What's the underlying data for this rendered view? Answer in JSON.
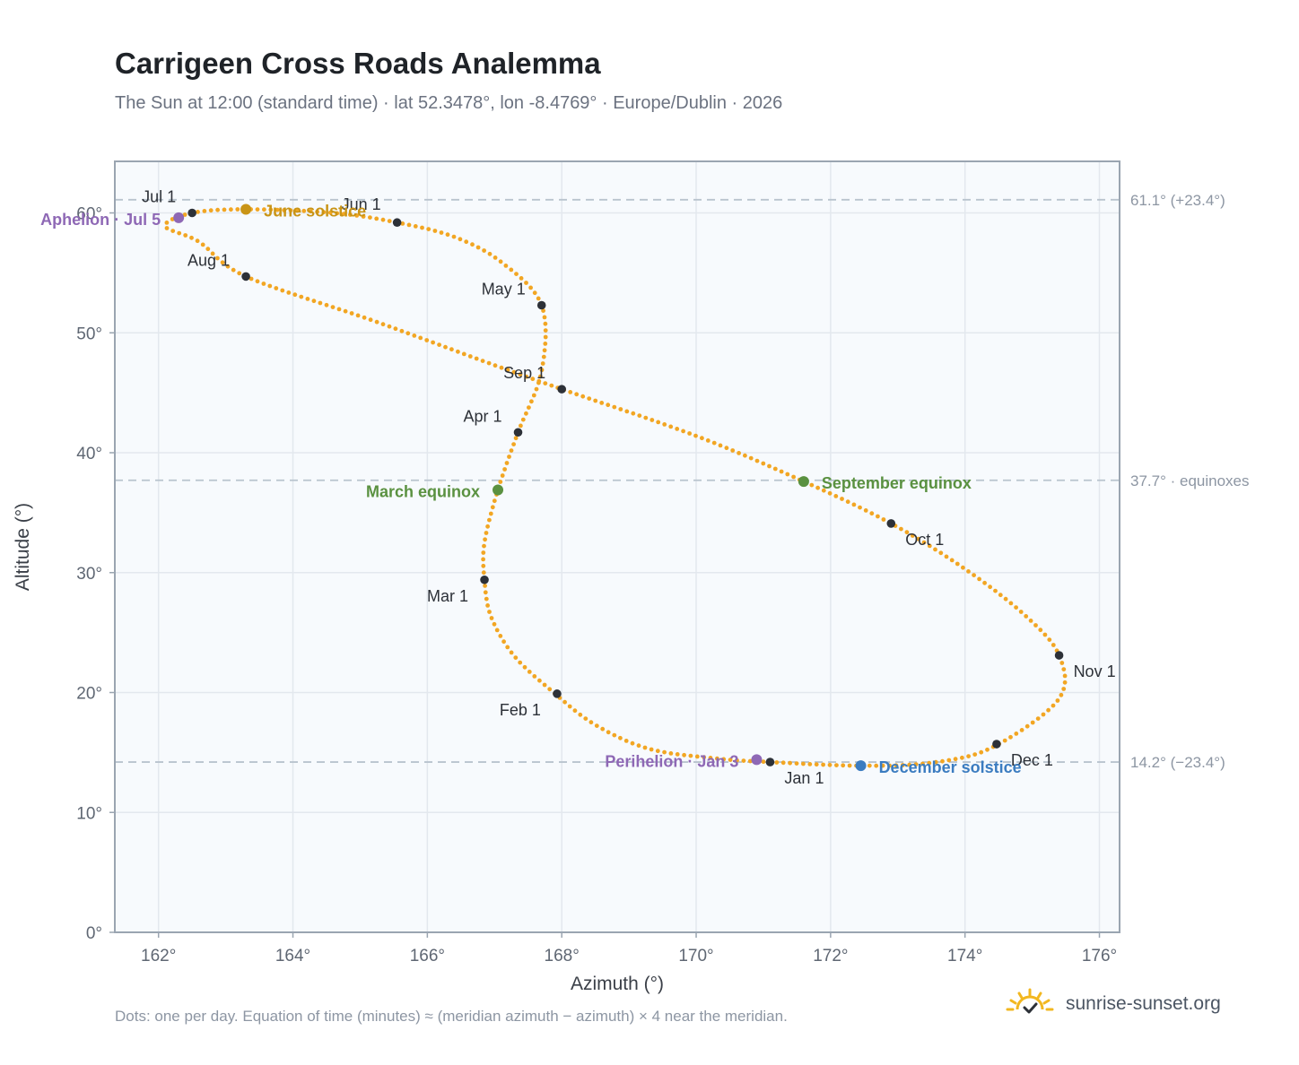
{
  "title": "Carrigeen Cross Roads Analemma",
  "subtitle": "The Sun at 12:00 (standard time) · lat 52.3478°, lon -8.4769° · Europe/Dublin · 2026",
  "footnote": "Dots: one per day. Equation of time (minutes) ≈ (meridian azimuth − azimuth) × 4 near the meridian.",
  "brand": {
    "name": "sunrise-sunset.org",
    "icon": "sun-logo-icon"
  },
  "colors": {
    "curve": "#f2a623",
    "month_marker": "#2d3138",
    "solstice_june": "#c99416",
    "solstice_december": "#3b7cc0",
    "equinox": "#5a9140",
    "aphelion_perihelion": "#8e68b5",
    "reference_line": "#b9c4ce",
    "plot_background": "#f7fafd",
    "grid": "#e3e8ee",
    "axis_frame": "#9aa5b1"
  },
  "chart_data": {
    "type": "scatter",
    "title": "Carrigeen Cross Roads Analemma",
    "xlabel": "Azimuth (°)",
    "ylabel": "Altitude (°)",
    "xlim": [
      161.35,
      176.3
    ],
    "ylim": [
      0,
      64.3
    ],
    "grid": true,
    "x_ticks": [
      162,
      164,
      166,
      168,
      170,
      172,
      174,
      176
    ],
    "y_ticks": [
      0,
      10,
      20,
      30,
      40,
      50,
      60
    ],
    "x_tick_labels": [
      "162°",
      "164°",
      "166°",
      "168°",
      "170°",
      "172°",
      "174°",
      "176°"
    ],
    "y_tick_labels": [
      "0°",
      "10°",
      "20°",
      "30°",
      "40°",
      "50°",
      "60°"
    ],
    "series": [
      {
        "type": "line-dots",
        "points_per_day": 1,
        "anchors": [
          [
            171.1,
            14.2
          ],
          [
            170.3,
            14.5
          ],
          [
            169.3,
            15.3
          ],
          [
            168.5,
            17.3
          ],
          [
            167.9,
            19.9
          ],
          [
            167.3,
            23.0
          ],
          [
            166.95,
            26.3
          ],
          [
            166.85,
            29.4
          ],
          [
            166.85,
            32.5
          ],
          [
            167.05,
            36.9
          ],
          [
            167.35,
            41.7
          ],
          [
            167.7,
            46.8
          ],
          [
            167.7,
            52.3
          ],
          [
            167.1,
            55.9
          ],
          [
            166.4,
            58.0
          ],
          [
            165.55,
            59.2
          ],
          [
            164.6,
            60.0
          ],
          [
            163.3,
            60.3
          ],
          [
            162.5,
            60.0
          ],
          [
            162.1,
            58.9
          ],
          [
            162.6,
            57.6
          ],
          [
            163.3,
            54.7
          ],
          [
            165.2,
            51.0
          ],
          [
            167.0,
            47.3
          ],
          [
            168.0,
            45.3
          ],
          [
            170.0,
            41.4
          ],
          [
            171.6,
            37.6
          ],
          [
            172.9,
            34.1
          ],
          [
            174.0,
            30.3
          ],
          [
            174.9,
            26.4
          ],
          [
            175.4,
            23.1
          ],
          [
            175.4,
            19.5
          ],
          [
            174.5,
            15.7
          ],
          [
            173.7,
            14.3
          ],
          [
            172.5,
            13.9
          ],
          [
            171.1,
            14.2
          ]
        ]
      }
    ],
    "month_markers": [
      {
        "label": "Jan 1",
        "x": 171.1,
        "y": 14.2
      },
      {
        "label": "Feb 1",
        "x": 167.93,
        "y": 19.9
      },
      {
        "label": "Mar 1",
        "x": 166.85,
        "y": 29.4
      },
      {
        "label": "Apr 1",
        "x": 167.35,
        "y": 41.7
      },
      {
        "label": "May 1",
        "x": 167.7,
        "y": 52.3
      },
      {
        "label": "Jun 1",
        "x": 165.55,
        "y": 59.2
      },
      {
        "label": "Jul 1",
        "x": 162.5,
        "y": 60.0
      },
      {
        "label": "Aug 1",
        "x": 163.3,
        "y": 54.7
      },
      {
        "label": "Sep 1",
        "x": 168.0,
        "y": 45.3
      },
      {
        "label": "Oct 1",
        "x": 172.9,
        "y": 34.1
      },
      {
        "label": "Nov 1",
        "x": 175.4,
        "y": 23.1
      },
      {
        "label": "Dec 1",
        "x": 174.47,
        "y": 15.7
      }
    ],
    "events": [
      {
        "label": "June solstice",
        "x": 163.3,
        "y": 60.3,
        "color": "#c99416"
      },
      {
        "label": "December solstice",
        "x": 172.45,
        "y": 13.9,
        "color": "#3b7cc0"
      },
      {
        "label": "March equinox",
        "x": 167.05,
        "y": 36.9,
        "color": "#5a9140"
      },
      {
        "label": "September equinox",
        "x": 171.6,
        "y": 37.6,
        "color": "#5a9140"
      },
      {
        "label": "Aphelion · Jul 5",
        "x": 162.3,
        "y": 59.6,
        "color": "#8e68b5"
      },
      {
        "label": "Perihelion · Jan 3",
        "x": 170.9,
        "y": 14.4,
        "color": "#8e68b5"
      }
    ],
    "reference_lines": [
      {
        "y": 61.1,
        "label": "61.1° (+23.4°)"
      },
      {
        "y": 37.7,
        "label": "37.7° · equinoxes"
      },
      {
        "y": 14.2,
        "label": "14.2° (−23.4°)"
      }
    ]
  }
}
